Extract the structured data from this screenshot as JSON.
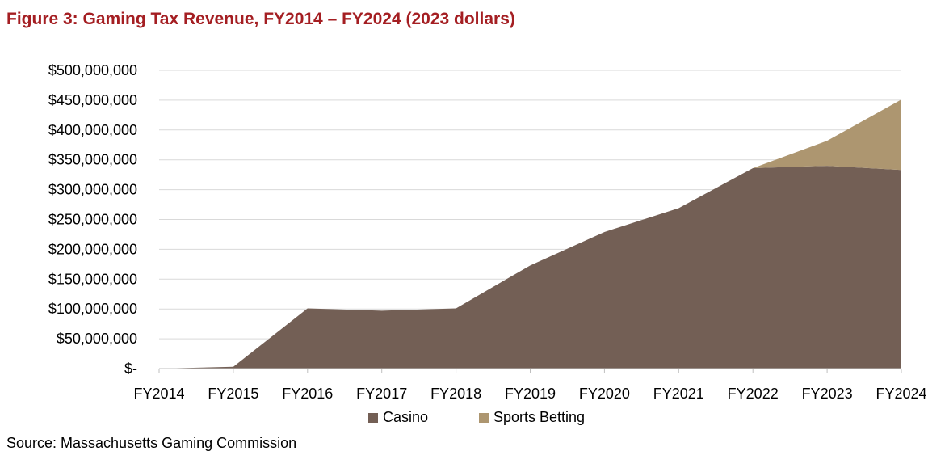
{
  "title": "Figure 3: Gaming Tax Revenue, FY2014 – FY2024 (2023 dollars)",
  "source": "Source: Massachusetts Gaming Commission",
  "colors": {
    "title": "#a41e22",
    "casino": "#735f55",
    "sports_betting": "#ad9670",
    "grid": "#d9d9d9"
  },
  "chart_data": {
    "type": "area",
    "stacked": true,
    "title": "Figure 3: Gaming Tax Revenue, FY2014 – FY2024 (2023 dollars)",
    "categories": [
      "FY2014",
      "FY2015",
      "FY2016",
      "FY2017",
      "FY2018",
      "FY2019",
      "FY2020",
      "FY2021",
      "FY2022",
      "FY2023",
      "FY2024"
    ],
    "series": [
      {
        "name": "Casino",
        "color": "#735f55",
        "values": [
          0,
          3000000,
          101000000,
          97000000,
          101000000,
          173000000,
          229000000,
          269000000,
          336000000,
          340000000,
          333000000
        ]
      },
      {
        "name": "Sports Betting",
        "color": "#ad9670",
        "values": [
          0,
          0,
          0,
          0,
          0,
          0,
          0,
          0,
          0,
          42000000,
          118000000
        ]
      }
    ],
    "ylim": [
      0,
      500000000
    ],
    "yticks": [
      0,
      50000000,
      100000000,
      150000000,
      200000000,
      250000000,
      300000000,
      350000000,
      400000000,
      450000000,
      500000000
    ],
    "ytick_labels": [
      "$-",
      "$50,000,000",
      "$100,000,000",
      "$150,000,000",
      "$200,000,000",
      "$250,000,000",
      "$300,000,000",
      "$350,000,000",
      "$400,000,000",
      "$450,000,000",
      "$500,000,000"
    ],
    "grid": true,
    "legend_position": "bottom"
  }
}
